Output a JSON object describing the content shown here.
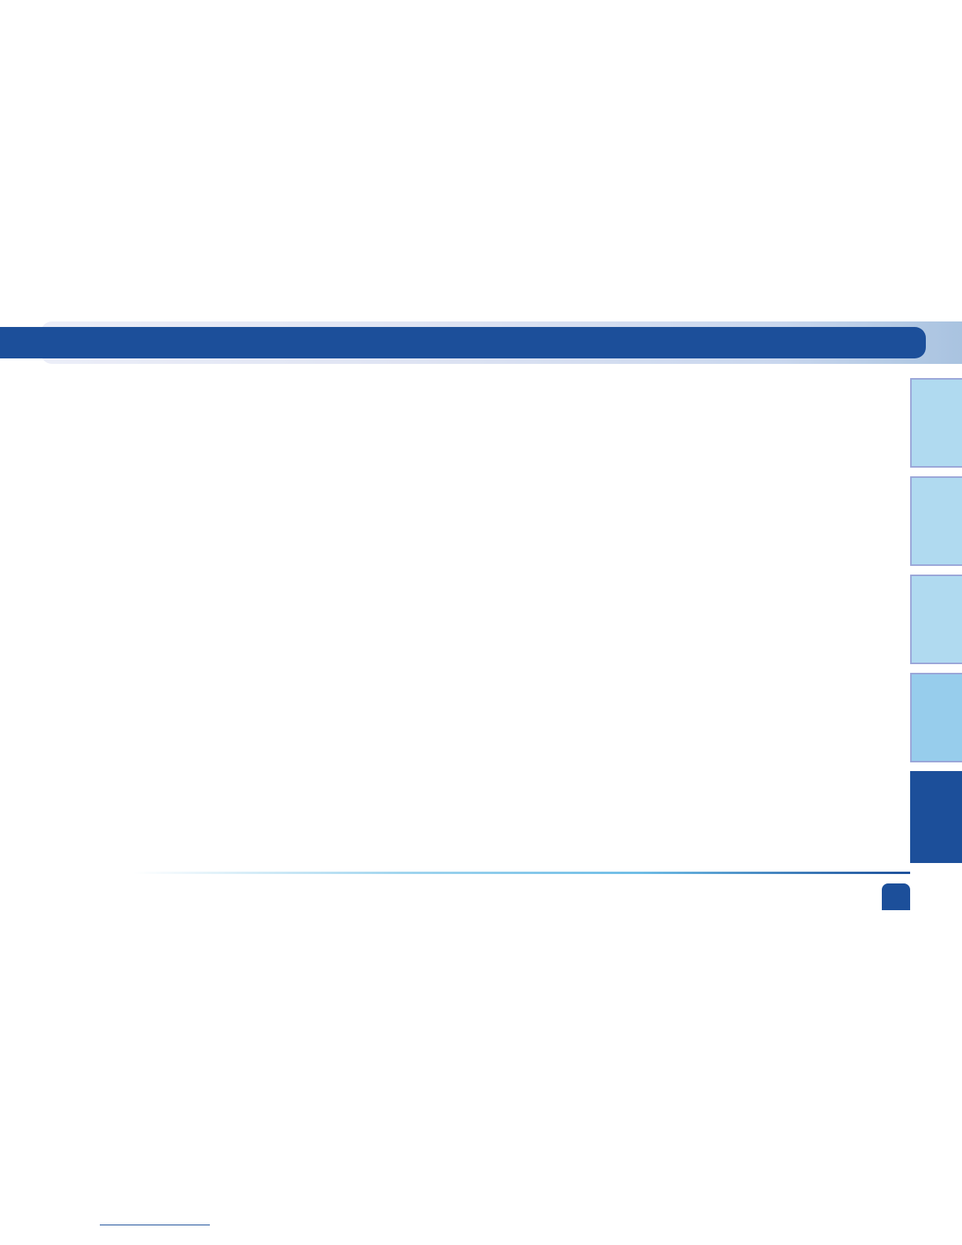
{
  "colors": {
    "primary": "#1c4f9a",
    "tab_light": "#b0daf0",
    "tab_medium": "#97cdec",
    "tab_border": "#9aa6d8"
  }
}
